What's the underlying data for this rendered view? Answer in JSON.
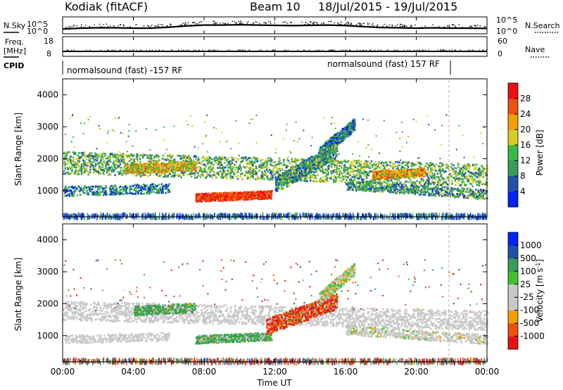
{
  "header": {
    "station": "Kodiak (fitACF)",
    "beam": "Beam 10",
    "date_range": "18/Jul/2015 - 19/Jul/2015"
  },
  "aux_panel_labels": {
    "nsky": "N.Sky",
    "nsearch": "N.Search",
    "freq_line1": "Freq.",
    "freq_line2": "[MHz]",
    "nave": "Nave",
    "cpid": "CPID",
    "noise_ticks_left": [
      "10^5",
      "10^0"
    ],
    "noise_ticks_right": [
      "10^5",
      "10^0"
    ],
    "freq_ticks": [
      "18",
      "8"
    ],
    "nave_ticks": [
      "60",
      "0"
    ]
  },
  "cpid_labels": [
    "normalsound (fast) -157 RF",
    "normalsound (fast) 157 RF"
  ],
  "time_axis": {
    "ticks": [
      "00:00",
      "04:00",
      "08:00",
      "12:00",
      "16:00",
      "20:00",
      "00:00"
    ],
    "label": "Time UT"
  },
  "range_axis": {
    "label": "Slant Range [km]",
    "ticks": [
      "1000",
      "2000",
      "3000",
      "4000"
    ]
  },
  "colors": {
    "power_scale": [
      "#0020ff",
      "#2050a8",
      "#3a9a5a",
      "#3cb846",
      "#d8cc20",
      "#f0a000",
      "#f05010",
      "#e81010"
    ],
    "velocity_scale": [
      "#e81010",
      "#f05010",
      "#f0a000",
      "#c8c8c8",
      "#c8c8c8",
      "#40c030",
      "#3a9a5a",
      "#2050a8",
      "#0020ff"
    ]
  },
  "chart_data": [
    {
      "type": "line",
      "title": "Kodiak (fitACF) Beam 10 18/Jul/2015 - 19/Jul/2015",
      "panel": "noise",
      "xlabel": "",
      "ylabel": "N.Sky",
      "xlim": [
        0,
        24
      ],
      "ylim_log10": [
        0,
        5
      ],
      "series": [
        {
          "name": "N.Sky",
          "x": [
            0,
            1,
            2,
            3,
            4,
            5,
            6,
            7,
            8,
            9,
            10,
            11,
            12,
            13,
            14,
            15,
            16,
            17,
            18,
            19,
            20,
            21,
            22,
            23,
            24
          ],
          "y_log10": [
            1.3,
            1.6,
            1.7,
            1.7,
            1.6,
            1.6,
            1.9,
            2.3,
            2.6,
            2.6,
            2.7,
            2.6,
            2.5,
            2.4,
            2.5,
            2.6,
            2.4,
            2.1,
            1.8,
            1.7,
            1.6,
            1.7,
            1.6,
            1.6,
            1.5
          ]
        }
      ]
    },
    {
      "type": "line",
      "panel": "frequency_nave",
      "xlim": [
        0,
        24
      ],
      "series": [
        {
          "name": "Freq.",
          "y_range": [
            8,
            18
          ],
          "x": [
            0,
            24
          ],
          "y": [
            10.3,
            10.3
          ]
        },
        {
          "name": "Nave",
          "y_range": [
            0,
            60
          ],
          "x": [
            0,
            24
          ],
          "y": [
            36,
            36
          ]
        }
      ]
    },
    {
      "type": "heatmap",
      "panel": "power",
      "xlabel": "",
      "ylabel": "Slant Range [km]",
      "xlim": [
        0,
        24
      ],
      "ylim": [
        180,
        4500
      ],
      "colorbar": {
        "label": "Power [dB]",
        "ticks": [
          "28",
          "24",
          "20",
          "16",
          "12",
          "8",
          "4"
        ],
        "range": [
          0,
          30
        ]
      },
      "features": [
        {
          "band": "main F-region",
          "x_start": 0,
          "x_end": 24,
          "range_start_km": 1100,
          "range_end_km": 2300,
          "typical_db": 14
        },
        {
          "band": "lower band",
          "x_start": 7.5,
          "x_end": 11.8,
          "range_start_km": 700,
          "range_end_km": 1000,
          "typical_db": 22
        },
        {
          "band": "upper scatter",
          "x_start": 14.5,
          "x_end": 16.5,
          "range_start_km": 2000,
          "range_end_km": 3300,
          "typical_db": 9
        },
        {
          "band": "enhanced echoes",
          "x_start": 17.5,
          "x_end": 20.5,
          "range_start_km": 1300,
          "range_end_km": 1700,
          "typical_db": 20
        }
      ]
    },
    {
      "type": "heatmap",
      "panel": "velocity",
      "xlabel": "Time UT",
      "ylabel": "Slant Range [km]",
      "xlim": [
        0,
        24
      ],
      "ylim": [
        180,
        4500
      ],
      "colorbar": {
        "label": "Velocity [m s^-1]",
        "ticks": [
          "1000",
          "500",
          "100",
          "25",
          "-25",
          "-100",
          "-500",
          "-1000"
        ],
        "range": [
          -1000,
          1000
        ]
      },
      "features": [
        {
          "band": "ground scatter",
          "x_start": 0,
          "x_end": 24,
          "range_start_km": 1300,
          "range_end_km": 2200,
          "typical_ms": 0
        },
        {
          "band": "positive velocity",
          "x_start": 7.5,
          "x_end": 11.8,
          "range_start_km": 800,
          "range_end_km": 1100,
          "typical_ms": 150
        },
        {
          "band": "negative velocity",
          "x_start": 11.5,
          "x_end": 15.5,
          "range_start_km": 1200,
          "range_end_km": 2200,
          "typical_ms": -400
        }
      ]
    }
  ]
}
